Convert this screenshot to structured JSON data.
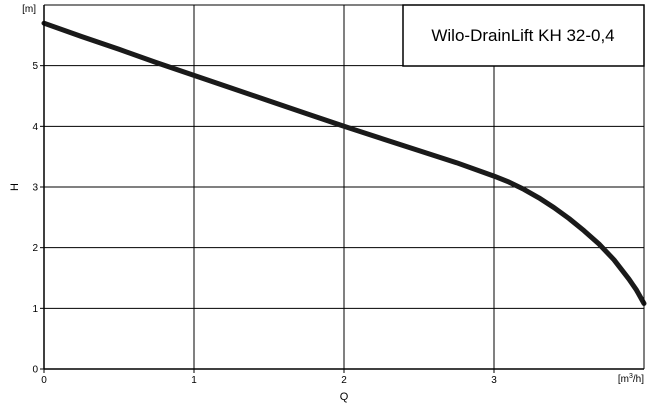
{
  "chart_data": {
    "type": "line",
    "title": "Wilo-DrainLift KH 32-0,4",
    "xlabel": "Q",
    "ylabel": "H",
    "x_unit": {
      "base": "[m",
      "sup": "3",
      "tail": "/h]"
    },
    "y_unit": "[m]",
    "xlim": [
      0,
      4
    ],
    "ylim": [
      0,
      6
    ],
    "x_ticks": [
      0,
      1,
      2,
      3
    ],
    "y_ticks": [
      0,
      1,
      2,
      3,
      4,
      5
    ],
    "grid": true,
    "legend": "none",
    "series": [
      {
        "color": "#1a1a1a",
        "x": [
          0,
          0.25,
          0.5,
          0.75,
          1.0,
          1.25,
          1.5,
          1.75,
          2.0,
          2.25,
          2.5,
          2.75,
          3.0,
          3.1,
          3.2,
          3.3,
          3.4,
          3.5,
          3.6,
          3.7,
          3.8,
          3.9,
          3.95,
          4.0
        ],
        "y": [
          5.7,
          5.48,
          5.27,
          5.05,
          4.84,
          4.63,
          4.42,
          4.21,
          4.0,
          3.8,
          3.6,
          3.4,
          3.18,
          3.08,
          2.96,
          2.82,
          2.66,
          2.48,
          2.28,
          2.06,
          1.8,
          1.48,
          1.3,
          1.08
        ]
      }
    ]
  }
}
